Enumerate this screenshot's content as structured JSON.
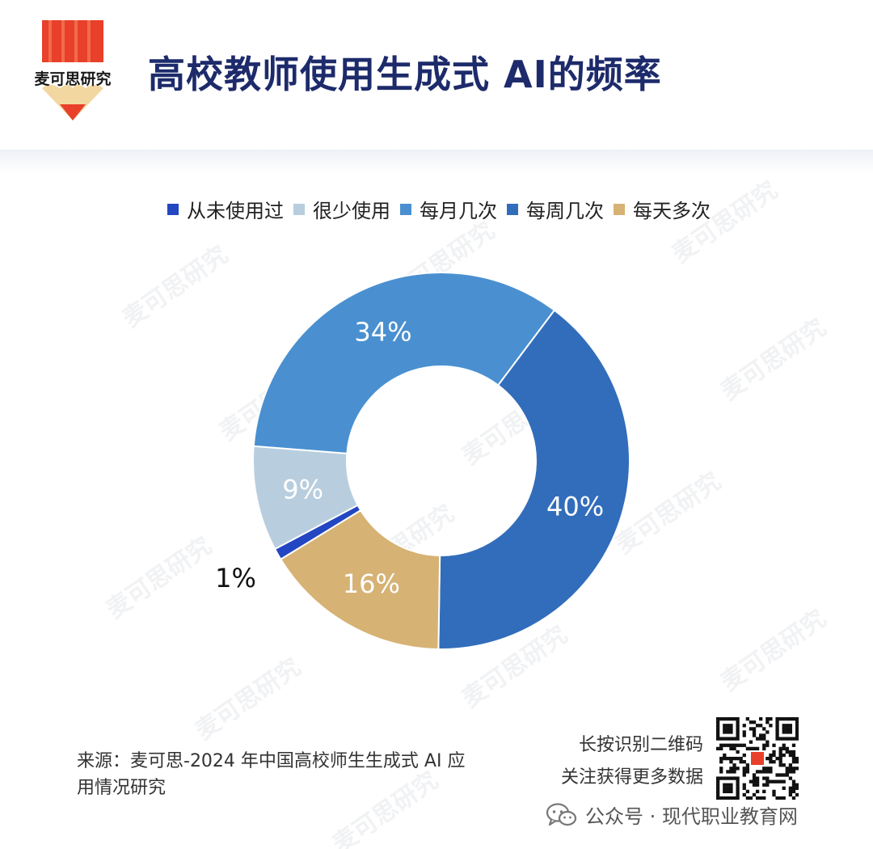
{
  "logo": {
    "text": "麦可思研究"
  },
  "page_title": "高校教师使用生成式 AI的频率",
  "colors": {
    "title": "#1d2b6b",
    "logo_red": "#e8402a",
    "logo_orange": "#f08a3c",
    "logo_yellow": "#f3d7a0"
  },
  "chart_data": {
    "type": "pie",
    "donut": true,
    "legend_position": "top",
    "categories": [
      "从未使用过",
      "很少使用",
      "每月几次",
      "每周几次",
      "每天多次"
    ],
    "values": [
      1,
      9,
      34,
      40,
      16
    ],
    "labels": [
      "1%",
      "9%",
      "34%",
      "40%",
      "16%"
    ],
    "colors": [
      "#2346c3",
      "#b8cedf",
      "#4a90d0",
      "#326dbb",
      "#d6b274"
    ]
  },
  "source": "来源：麦可思-2024 年中国高校师生生成式 AI 应用情况研究",
  "qr": {
    "line1": "长按识别二维码",
    "line2": "关注获得更多数据"
  },
  "footer": {
    "icon": "wechat-icon",
    "text": "公众号 · 现代职业教育网"
  },
  "watermark": "麦可思研究"
}
